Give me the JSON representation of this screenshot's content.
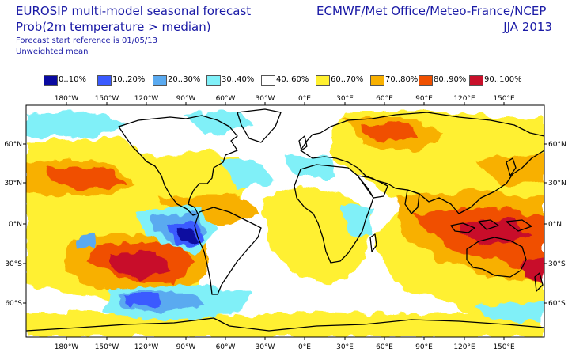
{
  "header": {
    "title": "EUROSIP multi-model seasonal forecast",
    "subtitle": "Prob(2m temperature > median)",
    "forecast_reference": "Forecast start reference is 01/05/13",
    "weighting": "Unweighted mean",
    "organizations": "ECMWF/Met Office/Meteo-France/NCEP",
    "season": "JJA 2013"
  },
  "legend": [
    {
      "label": "0..10%",
      "color": "#0a0aa0"
    },
    {
      "label": "10..20%",
      "color": "#3a5aff"
    },
    {
      "label": "20..30%",
      "color": "#5aaaf0"
    },
    {
      "label": "30..40%",
      "color": "#80f0f8"
    },
    {
      "label": "40..60%",
      "color": "#ffffff"
    },
    {
      "label": "60..70%",
      "color": "#fff030"
    },
    {
      "label": "70..80%",
      "color": "#f8b000"
    },
    {
      "label": "80..90%",
      "color": "#f05000"
    },
    {
      "label": "90..100%",
      "color": "#c8102a"
    }
  ],
  "axes": {
    "lon_top": [
      "180°W",
      "150°W",
      "120°W",
      "90°W",
      "60°W",
      "30°W",
      "0°E",
      "30°E",
      "60°E",
      "90°E",
      "120°E",
      "150°E"
    ],
    "lon_bottom": [
      "180°W",
      "150°W",
      "120°W",
      "90°W",
      "60°W",
      "30°W",
      "0°E",
      "30°E",
      "60°E",
      "90°E",
      "120°E",
      "150°E"
    ],
    "lat_left": [
      "60°N",
      "30°N",
      "0°N",
      "30°S",
      "60°S"
    ],
    "lat_right": [
      "60°N",
      "30°N",
      "0°N",
      "30°S",
      "60°S"
    ]
  }
}
